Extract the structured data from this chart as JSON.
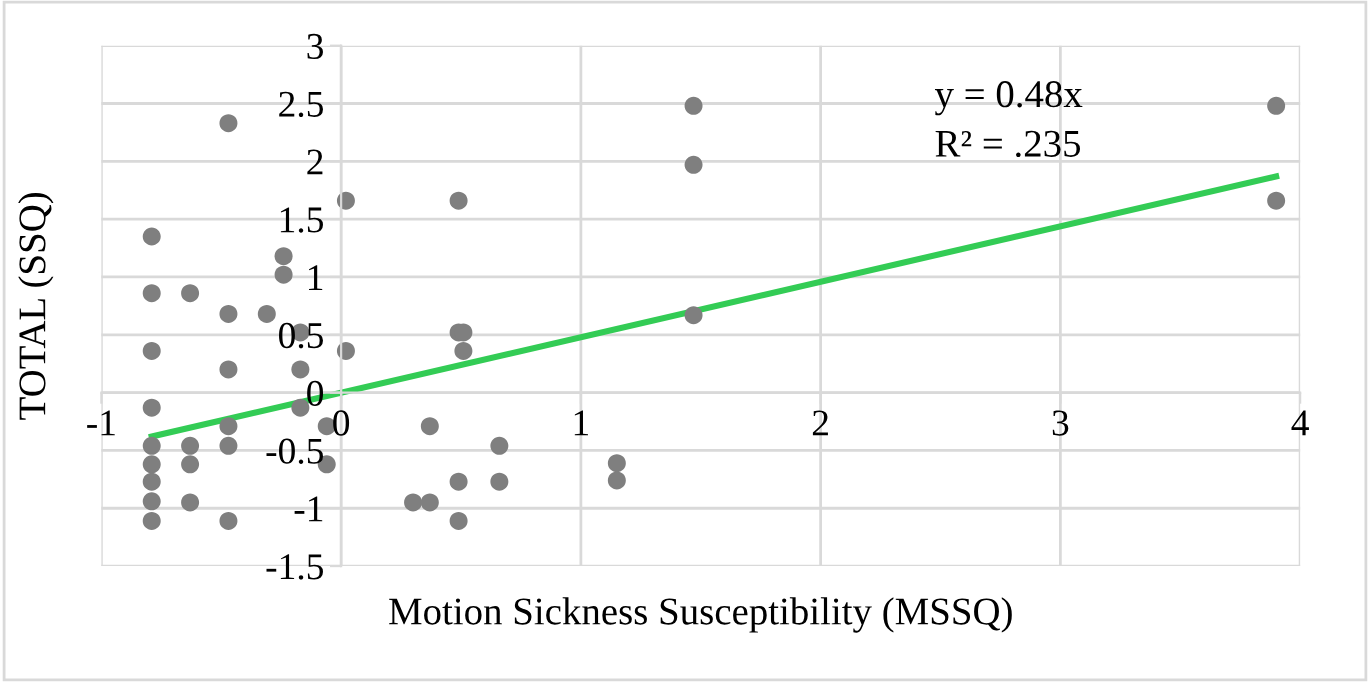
{
  "chart_data": {
    "type": "scatter",
    "xlabel": "Motion Sickness Susceptibility (MSSQ)",
    "ylabel": "TOTAL (SSQ)",
    "xlim": [
      -1,
      4
    ],
    "ylim": [
      -1.5,
      3
    ],
    "xticks": [
      -1,
      0,
      1,
      2,
      3,
      4
    ],
    "yticks": [
      -1.5,
      -1,
      -0.5,
      0,
      0.5,
      1,
      1.5,
      2,
      2.5,
      3
    ],
    "grid": true,
    "annotations": [
      "y = 0.48x",
      "R² = .235"
    ],
    "series": [
      {
        "color": "#7f7f7f",
        "marker": "circle",
        "x": [
          -0.79,
          -0.79,
          -0.79,
          -0.79,
          -0.79,
          -0.79,
          -0.79,
          -0.79,
          -0.79,
          -0.63,
          -0.63,
          -0.63,
          -0.63,
          -0.47,
          -0.47,
          -0.47,
          -0.47,
          -0.47,
          -0.47,
          -0.31,
          -0.24,
          -0.24,
          -0.17,
          -0.17,
          -0.17,
          -0.06,
          -0.06,
          0.02,
          0.02,
          0.3,
          0.37,
          0.37,
          0.49,
          0.49,
          0.49,
          0.49,
          0.51,
          0.51,
          0.66,
          0.66,
          1.15,
          1.15,
          1.47,
          1.47,
          1.47,
          3.9,
          3.9
        ],
        "values": [
          1.35,
          0.86,
          0.36,
          -0.13,
          -0.46,
          -0.62,
          -0.77,
          -0.94,
          -1.11,
          0.86,
          -0.46,
          -0.62,
          -0.95,
          2.33,
          0.68,
          0.2,
          -0.29,
          -0.46,
          -1.11,
          0.68,
          1.18,
          1.02,
          0.52,
          0.2,
          -0.13,
          -0.29,
          -0.62,
          1.66,
          0.36,
          -0.95,
          -0.95,
          -0.29,
          1.66,
          -1.11,
          -0.77,
          0.52,
          0.52,
          0.36,
          -0.46,
          -0.77,
          -0.61,
          -0.76,
          2.48,
          1.97,
          0.67,
          2.48,
          1.66
        ]
      },
      {
        "type": "line",
        "color": "#33cc55",
        "x": [
          -0.79,
          3.9
        ],
        "values": [
          -0.38,
          1.87
        ]
      }
    ]
  }
}
